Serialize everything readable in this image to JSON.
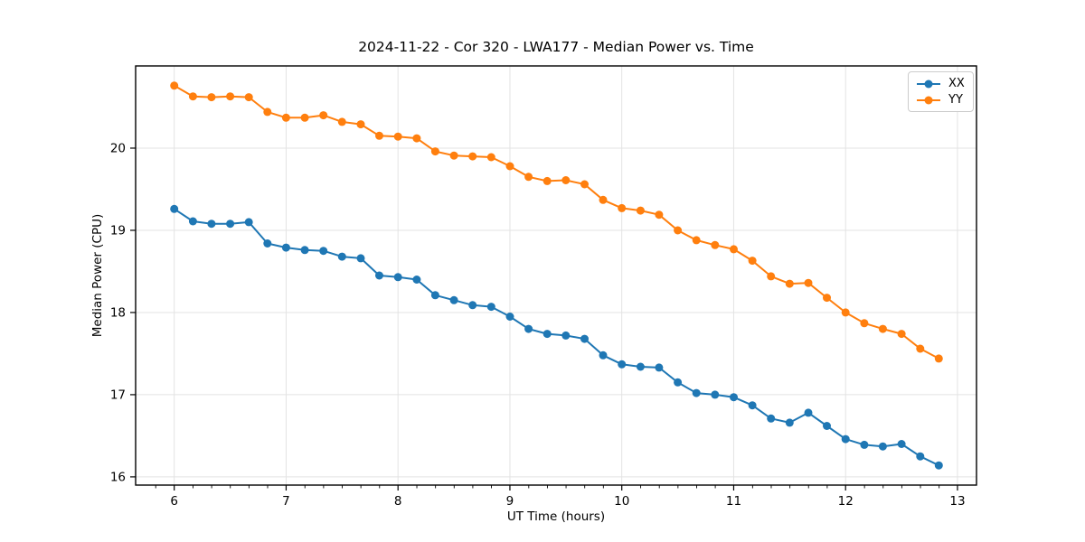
{
  "chart_data": {
    "type": "line",
    "title": "2024-11-22 - Cor 320 - LWA177 - Median Power vs. Time",
    "xlabel": "UT Time (hours)",
    "ylabel": "Median Power (CPU)",
    "xlim": [
      5.655,
      13.17
    ],
    "ylim": [
      15.9,
      21.0
    ],
    "xticks": [
      6,
      7,
      8,
      9,
      10,
      11,
      12,
      13
    ],
    "yticks": [
      16,
      17,
      18,
      19,
      20
    ],
    "x_minor_tick_step": 0.1667,
    "grid": true,
    "grid_color": "#e3e3e3",
    "background_color": "#ffffff",
    "legend_position": "upper right",
    "x": [
      6.0,
      6.167,
      6.333,
      6.5,
      6.667,
      6.833,
      7.0,
      7.167,
      7.333,
      7.5,
      7.667,
      7.833,
      8.0,
      8.167,
      8.333,
      8.5,
      8.667,
      8.833,
      9.0,
      9.167,
      9.333,
      9.5,
      9.667,
      9.833,
      10.0,
      10.167,
      10.333,
      10.5,
      10.667,
      10.833,
      11.0,
      11.167,
      11.333,
      11.5,
      11.667,
      11.833,
      12.0,
      12.167,
      12.333,
      12.5,
      12.667,
      12.833
    ],
    "series": [
      {
        "name": "XX",
        "color": "#1f77b4",
        "values": [
          19.26,
          19.11,
          19.08,
          19.08,
          19.1,
          18.84,
          18.79,
          18.76,
          18.75,
          18.68,
          18.66,
          18.45,
          18.43,
          18.4,
          18.21,
          18.15,
          18.09,
          18.07,
          17.95,
          17.8,
          17.74,
          17.72,
          17.68,
          17.48,
          17.37,
          17.34,
          17.33,
          17.15,
          17.02,
          17.0,
          16.97,
          16.87,
          16.71,
          16.66,
          16.78,
          16.62,
          16.46,
          16.39,
          16.37,
          16.4,
          16.25,
          16.14
        ]
      },
      {
        "name": "YY",
        "color": "#ff7f0e",
        "values": [
          20.76,
          20.63,
          20.62,
          20.63,
          20.62,
          20.44,
          20.37,
          20.37,
          20.4,
          20.32,
          20.29,
          20.15,
          20.14,
          20.12,
          19.96,
          19.91,
          19.9,
          19.89,
          19.78,
          19.65,
          19.6,
          19.61,
          19.56,
          19.37,
          19.27,
          19.24,
          19.19,
          19.0,
          18.88,
          18.82,
          18.77,
          18.63,
          18.44,
          18.35,
          18.36,
          18.18,
          18.0,
          17.87,
          17.8,
          17.74,
          17.56,
          17.44
        ]
      }
    ]
  }
}
